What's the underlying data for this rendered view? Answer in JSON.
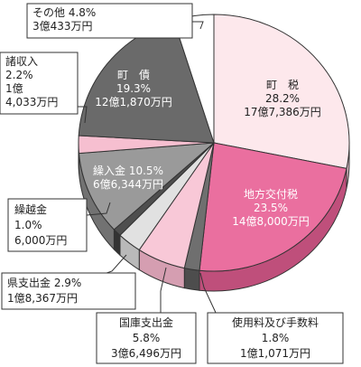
{
  "chart_data": {
    "type": "pie",
    "slices": [
      {
        "name": "町　税",
        "percent": "28.2%",
        "amount": "17億7,386万円",
        "value": 28.2,
        "color": "#fde8ec",
        "side": "#d9b7c0"
      },
      {
        "name": "地方交付税",
        "percent": "23.5%",
        "amount": "14億8,000万円",
        "value": 23.5,
        "color": "#ea6f9f",
        "side": "#bf4f7b"
      },
      {
        "name": "使用料及び手数料",
        "percent": "1.8%",
        "amount": "1億1,071万円",
        "value": 1.8,
        "color": "#6f6f6f",
        "side": "#4d4d4d"
      },
      {
        "name": "国庫支出金",
        "percent": "5.8%",
        "amount": "3億6,496万円",
        "value": 5.8,
        "color": "#f8c8d7",
        "side": "#d59eb1"
      },
      {
        "name": "県支出金",
        "percent": "2.9%",
        "amount": "1億8,367万円",
        "value": 2.9,
        "color": "#e1e1e1",
        "side": "#b9b9b9"
      },
      {
        "name": "繰越金",
        "percent": "1.0%",
        "amount": "6,000万円",
        "value": 1.0,
        "color": "#4e4e4e",
        "side": "#333333"
      },
      {
        "name": "繰入金",
        "percent": "10.5%",
        "amount": "6億6,344万円",
        "value": 10.5,
        "color": "#9a9a9a",
        "side": "#727272"
      },
      {
        "name": "諸収入",
        "percent": "2.2%",
        "amount": "1億4,033万円",
        "value": 2.2,
        "color": "#f6bfd0",
        "side": "#d49db0"
      },
      {
        "name": "町　債",
        "percent": "19.3%",
        "amount": "12億1,870万円",
        "value": 19.3,
        "color": "#6a6a6a",
        "side": "#474747"
      },
      {
        "name": "その他",
        "percent": "4.8%",
        "amount": "3億433万円",
        "value": 4.8,
        "color": "#ffffff",
        "side": "#cfcfcf"
      }
    ],
    "labels": {
      "town_tax": [
        "町　税",
        "28.2%",
        "17億7,386万円"
      ],
      "local_alloc": [
        "地方交付税",
        "23.5%",
        "14億8,000万円"
      ],
      "usage_fees": [
        "使用料及び手数料",
        "1.8%",
        "1億1,071万円"
      ],
      "national_subsidy": [
        "国庫支出金",
        "5.8%",
        "3億6,496万円"
      ],
      "pref_subsidy": [
        "県支出金 2.9%",
        "1億8,367万円"
      ],
      "carryover": [
        "繰越金",
        "1.0%",
        "6,000万円"
      ],
      "transfer": [
        "繰入金 10.5%",
        "6億6,344万円"
      ],
      "misc_income": [
        "諸収入",
        "2.2%",
        "1億",
        "4,033万円"
      ],
      "town_bond": [
        "町　債",
        "19.3%",
        "12億1,870万円"
      ],
      "other": [
        "その他 4.8%",
        "3億433万円"
      ]
    }
  }
}
